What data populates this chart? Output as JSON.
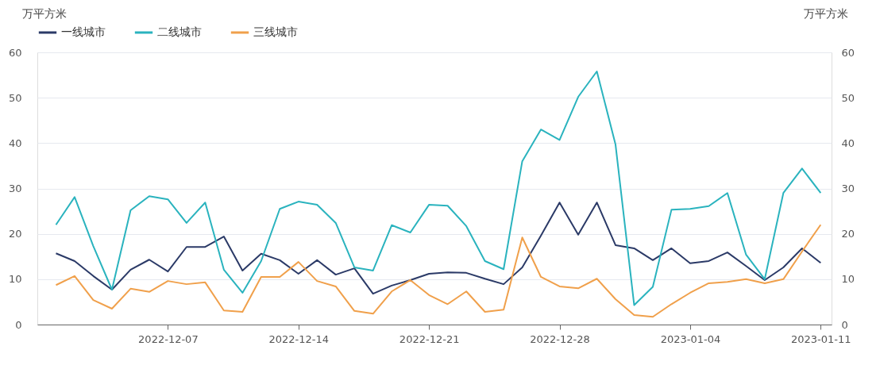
{
  "chart_data": {
    "type": "line",
    "x": [
      "2022-12-01",
      "2022-12-02",
      "2022-12-03",
      "2022-12-04",
      "2022-12-05",
      "2022-12-06",
      "2022-12-07",
      "2022-12-08",
      "2022-12-09",
      "2022-12-10",
      "2022-12-11",
      "2022-12-12",
      "2022-12-13",
      "2022-12-14",
      "2022-12-15",
      "2022-12-16",
      "2022-12-17",
      "2022-12-18",
      "2022-12-19",
      "2022-12-20",
      "2022-12-21",
      "2022-12-22",
      "2022-12-23",
      "2022-12-24",
      "2022-12-25",
      "2022-12-26",
      "2022-12-27",
      "2022-12-28",
      "2022-12-29",
      "2022-12-30",
      "2022-12-31",
      "2023-01-01",
      "2023-01-02",
      "2023-01-03",
      "2023-01-04",
      "2023-01-05",
      "2023-01-06",
      "2023-01-07",
      "2023-01-08",
      "2023-01-09",
      "2023-01-10",
      "2023-01-11"
    ],
    "series": [
      {
        "name": "一线城市",
        "color": "#2b3a67",
        "values": [
          15.7,
          14.0,
          10.7,
          7.7,
          12.1,
          14.3,
          11.7,
          17.1,
          17.1,
          19.4,
          11.9,
          15.6,
          14.2,
          11.2,
          14.2,
          11.0,
          12.4,
          6.8,
          8.6,
          9.8,
          11.2,
          11.5,
          11.4,
          10.1,
          8.9,
          12.6,
          19.6,
          26.9,
          19.8,
          26.9,
          17.5,
          16.8,
          14.2,
          16.8,
          13.5,
          14.0,
          15.9,
          12.9,
          9.8,
          12.6,
          16.8,
          13.6
        ]
      },
      {
        "name": "二线城市",
        "color": "#2ab3be",
        "values": [
          22.0,
          28.1,
          17.3,
          7.7,
          25.2,
          28.3,
          27.6,
          22.4,
          26.9,
          12.1,
          7.0,
          14.0,
          25.5,
          27.1,
          26.4,
          22.4,
          12.6,
          11.9,
          21.9,
          20.3,
          26.4,
          26.2,
          21.7,
          14.0,
          12.2,
          36.0,
          43.0,
          40.7,
          50.2,
          55.8,
          39.7,
          4.3,
          8.3,
          25.3,
          25.5,
          26.1,
          29.0,
          15.4,
          10.0,
          29.0,
          34.4,
          29.0
        ]
      },
      {
        "name": "三线城市",
        "color": "#f0a04b",
        "values": [
          8.7,
          10.7,
          5.4,
          3.5,
          7.9,
          7.2,
          9.6,
          8.9,
          9.3,
          3.1,
          2.8,
          10.5,
          10.5,
          13.8,
          9.6,
          8.4,
          3.0,
          2.4,
          7.3,
          9.8,
          6.5,
          4.5,
          7.3,
          2.8,
          3.3,
          19.2,
          10.5,
          8.4,
          8.0,
          10.1,
          5.6,
          2.1,
          1.7,
          4.5,
          7.0,
          9.1,
          9.4,
          10.0,
          9.1,
          10.0,
          16.1,
          22.0
        ]
      }
    ],
    "ylabel": "万平方米",
    "y2label": "万平方米",
    "xlim": [
      "2022-11-30",
      "2023-01-11T14:00"
    ],
    "xticks": [
      {
        "value": "2022-12-07",
        "label": "2022-12-07"
      },
      {
        "value": "2022-12-14",
        "label": "2022-12-14"
      },
      {
        "value": "2022-12-21",
        "label": "2022-12-21"
      },
      {
        "value": "2022-12-28",
        "label": "2022-12-28"
      },
      {
        "value": "2023-01-04",
        "label": "2023-01-04"
      },
      {
        "value": "2023-01-11",
        "label": "2023-01-11"
      }
    ],
    "ylim": [
      0,
      60
    ],
    "yticks": [
      0,
      10,
      20,
      30,
      40,
      50,
      60
    ],
    "y2lim": [
      0,
      60
    ],
    "y2ticks": [
      0,
      10,
      20,
      30,
      40,
      50,
      60
    ],
    "grid": "y",
    "legend": "top left",
    "marker": "none",
    "line_style": "solid"
  }
}
